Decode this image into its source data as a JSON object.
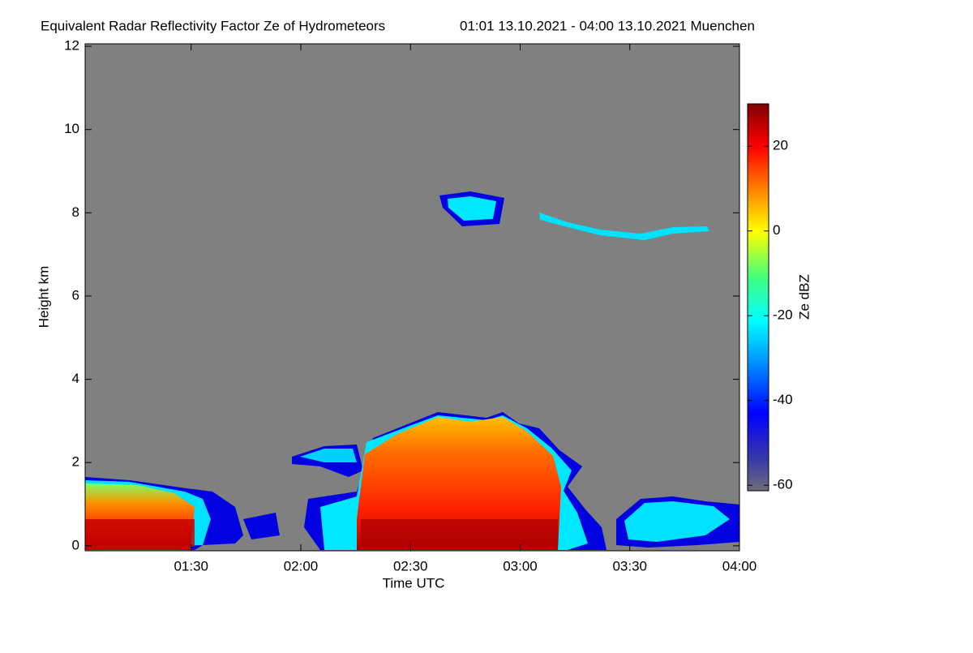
{
  "chart_data": {
    "type": "time-height",
    "title": "Equivalent Radar Reflectivity Factor Ze of Hydrometeors",
    "subtitle": "01:01 13.10.2021 - 04:00 13.10.2021 Muenchen",
    "xlabel": "Time UTC",
    "ylabel": "Height km",
    "colorbar_label": "Ze dBZ",
    "xlim": [
      1.0167,
      4.0
    ],
    "xticks": [
      {
        "value": 1.5,
        "label": "01:30"
      },
      {
        "value": 2.0,
        "label": "02:00"
      },
      {
        "value": 2.5,
        "label": "02:30"
      },
      {
        "value": 3.0,
        "label": "03:00"
      },
      {
        "value": 3.5,
        "label": "03:30"
      },
      {
        "value": 4.0,
        "label": "04:00"
      }
    ],
    "ylim": [
      -0.12,
      12.06
    ],
    "yticks": [
      0,
      2,
      4,
      6,
      8,
      10,
      12
    ],
    "clim": [
      -61.3,
      30
    ],
    "cticks": [
      -60,
      -40,
      -20,
      0,
      20
    ],
    "background": "#808080"
  }
}
